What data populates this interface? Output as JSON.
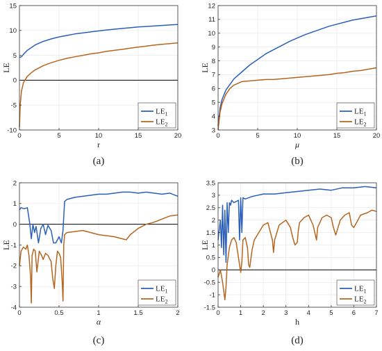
{
  "colors": {
    "LE1": "#2b5fb8",
    "LE2": "#b5651d"
  },
  "chart_data": [
    {
      "type": "line",
      "caption": "(a)",
      "xlabel": "r",
      "ylabel": "LE",
      "xlim": [
        0,
        20
      ],
      "ylim": [
        -10,
        15
      ],
      "xticks": [
        0,
        5,
        10,
        15,
        20
      ],
      "yticks": [
        -10,
        -5,
        0,
        5,
        10,
        15
      ],
      "legend_position": "bottom-right",
      "grid": true,
      "series": [
        {
          "name": "LE",
          "subscript": "1",
          "x": [
            0,
            0.25,
            0.5,
            1,
            2,
            3,
            4,
            5,
            6,
            7,
            8,
            9,
            10,
            11,
            12,
            13,
            14,
            15,
            16,
            17,
            18,
            19,
            20
          ],
          "values": [
            4.6,
            4.7,
            5.2,
            6.0,
            7.1,
            7.8,
            8.3,
            8.7,
            9.0,
            9.3,
            9.5,
            9.7,
            9.9,
            10.1,
            10.25,
            10.4,
            10.55,
            10.7,
            10.8,
            10.9,
            11.0,
            11.1,
            11.2
          ]
        },
        {
          "name": "LE",
          "subscript": "2",
          "x": [
            0,
            0.1,
            0.25,
            0.5,
            1,
            1.5,
            2,
            3,
            4,
            5,
            6,
            7,
            8,
            9,
            10,
            11,
            12,
            13,
            14,
            15,
            16,
            17,
            18,
            19,
            20
          ],
          "values": [
            -9.5,
            -5.0,
            -2.2,
            -0.5,
            0.8,
            1.5,
            2.1,
            2.9,
            3.5,
            4.0,
            4.4,
            4.7,
            5.0,
            5.3,
            5.5,
            5.8,
            6.0,
            6.2,
            6.45,
            6.65,
            6.85,
            7.05,
            7.2,
            7.35,
            7.5
          ]
        }
      ]
    },
    {
      "type": "line",
      "caption": "(b)",
      "xlabel": "μ",
      "ylabel": "LE",
      "xlim": [
        0,
        20
      ],
      "ylim": [
        3,
        12
      ],
      "xticks": [
        0,
        5,
        10,
        15,
        20
      ],
      "yticks": [
        3,
        4,
        5,
        6,
        7,
        8,
        9,
        10,
        11,
        12
      ],
      "legend_position": "bottom-right",
      "grid": true,
      "series": [
        {
          "name": "LE",
          "subscript": "1",
          "x": [
            0,
            0.25,
            0.5,
            1,
            1.5,
            2,
            3,
            4,
            5,
            6,
            7,
            8,
            9,
            10,
            11,
            12,
            13,
            14,
            15,
            16,
            17,
            18,
            19,
            20
          ],
          "values": [
            3.3,
            4.6,
            5.2,
            5.9,
            6.3,
            6.7,
            7.2,
            7.7,
            8.1,
            8.5,
            8.8,
            9.1,
            9.4,
            9.65,
            9.9,
            10.1,
            10.3,
            10.5,
            10.65,
            10.8,
            10.95,
            11.05,
            11.15,
            11.25
          ]
        },
        {
          "name": "LE",
          "subscript": "2",
          "x": [
            0,
            0.25,
            0.5,
            1,
            1.5,
            2,
            3,
            4,
            5,
            6,
            7,
            8,
            9,
            10,
            11,
            12,
            13,
            14,
            15,
            16,
            17,
            18,
            19,
            20
          ],
          "values": [
            3.0,
            4.3,
            4.9,
            5.6,
            6.0,
            6.25,
            6.5,
            6.55,
            6.6,
            6.65,
            6.65,
            6.7,
            6.75,
            6.8,
            6.85,
            6.9,
            6.95,
            7.0,
            7.1,
            7.15,
            7.25,
            7.3,
            7.4,
            7.5
          ]
        }
      ]
    },
    {
      "type": "line",
      "caption": "(c)",
      "xlabel": "α",
      "ylabel": "LE",
      "xlim": [
        0,
        2
      ],
      "ylim": [
        -4,
        2
      ],
      "xticks": [
        0,
        0.5,
        1,
        1.5,
        2
      ],
      "yticks": [
        -4,
        -3,
        -2,
        -1,
        0,
        1,
        2
      ],
      "legend_position": "bottom-right",
      "grid": true,
      "series": [
        {
          "name": "LE",
          "subscript": "1",
          "x": [
            0,
            0.02,
            0.06,
            0.1,
            0.13,
            0.15,
            0.17,
            0.19,
            0.21,
            0.24,
            0.27,
            0.3,
            0.33,
            0.36,
            0.4,
            0.43,
            0.46,
            0.5,
            0.53,
            0.55,
            0.57,
            0.6,
            0.7,
            0.8,
            0.9,
            1.0,
            1.1,
            1.2,
            1.3,
            1.4,
            1.5,
            1.6,
            1.7,
            1.8,
            1.9,
            2.0
          ],
          "values": [
            0.7,
            0.8,
            0.75,
            0.8,
            0.05,
            -0.7,
            0.0,
            -0.4,
            -0.1,
            -0.9,
            -0.2,
            0.0,
            -0.5,
            -0.05,
            -0.3,
            -0.9,
            -0.9,
            -0.6,
            -0.9,
            -0.3,
            1.1,
            1.2,
            1.3,
            1.35,
            1.4,
            1.45,
            1.45,
            1.5,
            1.55,
            1.55,
            1.5,
            1.55,
            1.5,
            1.45,
            1.5,
            1.35
          ]
        },
        {
          "name": "LE",
          "subscript": "2",
          "x": [
            0,
            0.02,
            0.05,
            0.08,
            0.1,
            0.12,
            0.14,
            0.15,
            0.16,
            0.18,
            0.2,
            0.22,
            0.25,
            0.28,
            0.3,
            0.33,
            0.36,
            0.4,
            0.42,
            0.44,
            0.46,
            0.48,
            0.5,
            0.52,
            0.54,
            0.55,
            0.56,
            0.57,
            0.6,
            0.7,
            0.8,
            0.9,
            1.0,
            1.1,
            1.2,
            1.3,
            1.35,
            1.4,
            1.5,
            1.6,
            1.7,
            1.8,
            1.9,
            2.0
          ],
          "values": [
            -2.0,
            -1.3,
            -1.1,
            -1.2,
            -1.0,
            -1.5,
            -2.5,
            -3.8,
            -1.5,
            -1.2,
            -1.3,
            -2.3,
            -1.3,
            -1.5,
            -1.7,
            -1.4,
            -1.5,
            -1.8,
            -2.6,
            -3.1,
            -2.0,
            -1.3,
            -1.4,
            -1.6,
            -2.8,
            -3.7,
            -1.0,
            -0.5,
            -0.4,
            -0.35,
            -0.3,
            -0.4,
            -0.5,
            -0.55,
            -0.6,
            -0.7,
            -0.75,
            -0.5,
            -0.2,
            0.0,
            0.1,
            0.25,
            0.4,
            0.45
          ]
        }
      ]
    },
    {
      "type": "line",
      "caption": "(d)",
      "xlabel": "h",
      "ylabel": "LE",
      "xlim": [
        0,
        7
      ],
      "ylim": [
        -1.5,
        3.5
      ],
      "xticks": [
        0,
        1,
        2,
        3,
        4,
        5,
        6,
        7
      ],
      "yticks": [
        -1.5,
        -1,
        -0.5,
        0,
        0.5,
        1,
        1.5,
        2,
        2.5,
        3,
        3.5
      ],
      "legend_position": "bottom-right",
      "grid": true,
      "series": [
        {
          "name": "LE",
          "subscript": "1",
          "x": [
            0,
            0.1,
            0.15,
            0.2,
            0.25,
            0.3,
            0.35,
            0.4,
            0.45,
            0.5,
            0.55,
            0.6,
            0.7,
            0.8,
            0.9,
            0.95,
            1.0,
            1.05,
            1.1,
            1.2,
            1.5,
            2.0,
            2.5,
            3.0,
            3.5,
            4.0,
            4.5,
            5.0,
            5.5,
            6.0,
            6.5,
            7.0
          ],
          "values": [
            1.2,
            2.0,
            0.9,
            2.6,
            0.6,
            2.4,
            0.3,
            2.7,
            1.5,
            2.7,
            2.6,
            2.8,
            2.7,
            2.75,
            2.8,
            1.2,
            2.9,
            1.5,
            2.9,
            2.85,
            2.95,
            3.05,
            3.05,
            3.1,
            3.15,
            3.2,
            3.25,
            3.2,
            3.3,
            3.3,
            3.35,
            3.3
          ]
        },
        {
          "name": "LE",
          "subscript": "2",
          "x": [
            0,
            0.1,
            0.2,
            0.3,
            0.35,
            0.4,
            0.5,
            0.6,
            0.7,
            0.8,
            0.9,
            1.0,
            1.05,
            1.1,
            1.2,
            1.3,
            1.35,
            1.4,
            1.5,
            1.6,
            1.8,
            2.0,
            2.2,
            2.4,
            2.45,
            2.5,
            2.7,
            3.0,
            3.2,
            3.3,
            3.4,
            3.5,
            3.55,
            3.6,
            3.8,
            4.0,
            4.2,
            4.35,
            4.4,
            4.6,
            4.8,
            5.0,
            5.1,
            5.2,
            5.4,
            5.6,
            5.8,
            5.9,
            6.0,
            6.3,
            6.6,
            6.8,
            7.0
          ],
          "values": [
            -0.3,
            0.0,
            -0.5,
            -1.2,
            -0.7,
            0.2,
            0.9,
            1.2,
            1.3,
            1.1,
            0.5,
            -0.1,
            0.3,
            1.2,
            1.3,
            0.9,
            0.2,
            0.1,
            0.8,
            1.2,
            1.5,
            1.8,
            1.9,
            1.2,
            0.7,
            1.2,
            1.8,
            2.0,
            1.7,
            1.3,
            1.0,
            1.1,
            1.6,
            1.9,
            2.1,
            2.2,
            1.8,
            1.2,
            1.7,
            2.1,
            2.2,
            2.1,
            1.7,
            1.4,
            2.0,
            2.2,
            2.3,
            1.8,
            1.7,
            2.2,
            2.3,
            2.4,
            2.35
          ]
        }
      ]
    }
  ]
}
